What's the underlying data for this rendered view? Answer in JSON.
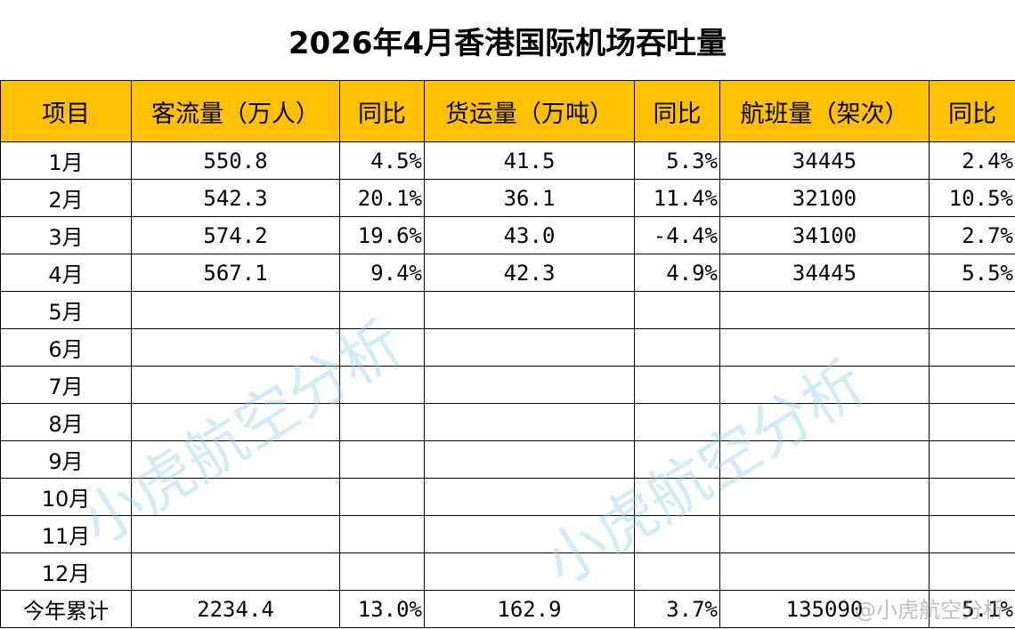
{
  "title": "2026年4月香港国际机场吞吐量",
  "headers": [
    "项目",
    "客流量（万人）",
    "同比",
    "货运量（万吨）",
    "同比",
    "航班量（架次）",
    "同比"
  ],
  "rows": [
    {
      "month": "1月",
      "passengers": "550.8",
      "passengers_yoy": "4.5%",
      "cargo": "41.5",
      "cargo_yoy": "5.3%",
      "flights": "34445",
      "flights_yoy": "2.4%"
    },
    {
      "month": "2月",
      "passengers": "542.3",
      "passengers_yoy": "20.1%",
      "cargo": "36.1",
      "cargo_yoy": "11.4%",
      "flights": "32100",
      "flights_yoy": "10.5%"
    },
    {
      "month": "3月",
      "passengers": "574.2",
      "passengers_yoy": "19.6%",
      "cargo": "43.0",
      "cargo_yoy": "-4.4%",
      "flights": "34100",
      "flights_yoy": "2.7%"
    },
    {
      "month": "4月",
      "passengers": "567.1",
      "passengers_yoy": "9.4%",
      "cargo": "42.3",
      "cargo_yoy": "4.9%",
      "flights": "34445",
      "flights_yoy": "5.5%"
    },
    {
      "month": "5月",
      "passengers": "",
      "passengers_yoy": "",
      "cargo": "",
      "cargo_yoy": "",
      "flights": "",
      "flights_yoy": ""
    },
    {
      "month": "6月",
      "passengers": "",
      "passengers_yoy": "",
      "cargo": "",
      "cargo_yoy": "",
      "flights": "",
      "flights_yoy": ""
    },
    {
      "month": "7月",
      "passengers": "",
      "passengers_yoy": "",
      "cargo": "",
      "cargo_yoy": "",
      "flights": "",
      "flights_yoy": ""
    },
    {
      "month": "8月",
      "passengers": "",
      "passengers_yoy": "",
      "cargo": "",
      "cargo_yoy": "",
      "flights": "",
      "flights_yoy": ""
    },
    {
      "month": "9月",
      "passengers": "",
      "passengers_yoy": "",
      "cargo": "",
      "cargo_yoy": "",
      "flights": "",
      "flights_yoy": ""
    },
    {
      "month": "10月",
      "passengers": "",
      "passengers_yoy": "",
      "cargo": "",
      "cargo_yoy": "",
      "flights": "",
      "flights_yoy": ""
    },
    {
      "month": "11月",
      "passengers": "",
      "passengers_yoy": "",
      "cargo": "",
      "cargo_yoy": "",
      "flights": "",
      "flights_yoy": ""
    },
    {
      "month": "12月",
      "passengers": "",
      "passengers_yoy": "",
      "cargo": "",
      "cargo_yoy": "",
      "flights": "",
      "flights_yoy": ""
    }
  ],
  "total": {
    "month": "今年累计",
    "passengers": "2234.4",
    "passengers_yoy": "13.0%",
    "cargo": "162.9",
    "cargo_yoy": "3.7%",
    "flights": "135090",
    "flights_yoy": "5.1%"
  },
  "watermark": "小虎航空分析",
  "corner_watermark": "@小虎航空分析",
  "colors": {
    "header_bg": "#ffc000",
    "watermark": "#87ceeb"
  }
}
